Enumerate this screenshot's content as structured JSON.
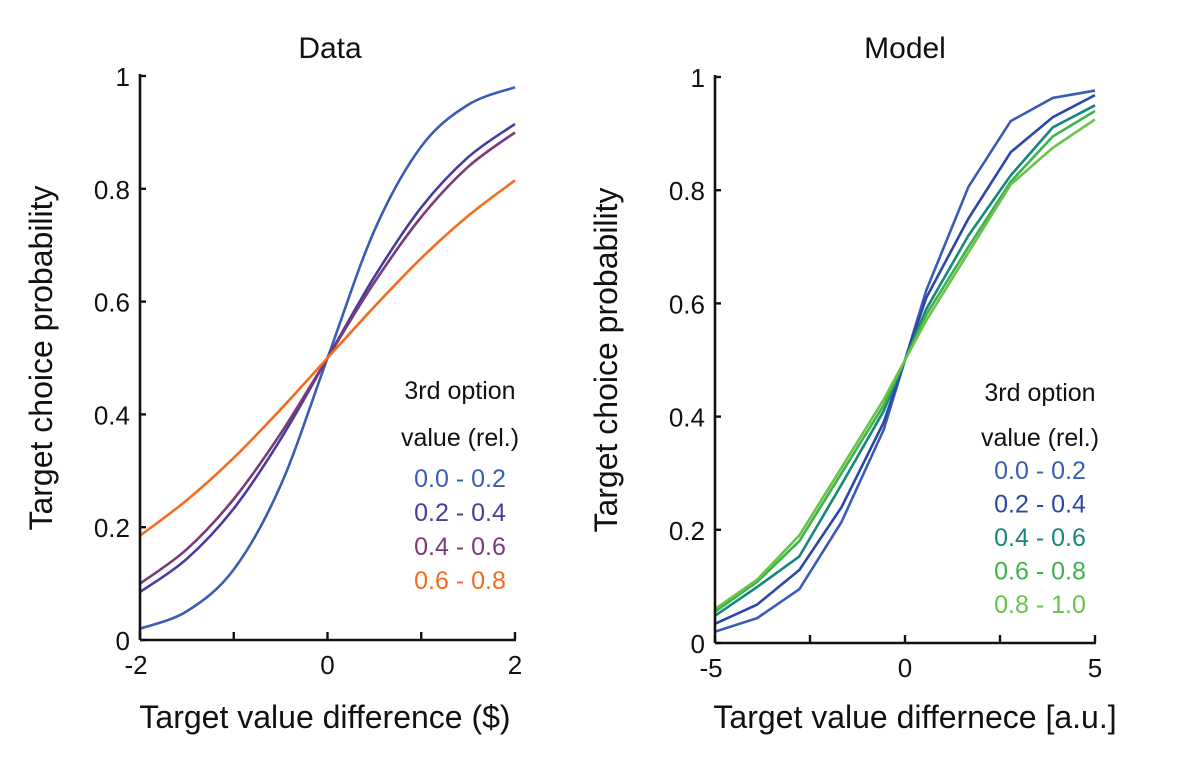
{
  "chart_data": [
    {
      "type": "line",
      "title": "Data",
      "xlabel": "Target value difference ($)",
      "ylabel": "Target choice probability",
      "xlim": [
        -2,
        2
      ],
      "ylim": [
        0,
        1
      ],
      "xticks": [
        -2,
        -1,
        0,
        1,
        2
      ],
      "xticklabels": [
        "-2",
        "",
        "0",
        "",
        "2"
      ],
      "yticks": [
        0,
        0.2,
        0.4,
        0.6,
        0.8,
        1
      ],
      "yticklabels": [
        "0",
        "0.2",
        "0.4",
        "0.6",
        "0.8",
        "1"
      ],
      "grid": false,
      "smooth": true,
      "legend": {
        "title": [
          "3rd option",
          "value (rel.)"
        ],
        "placement": "bottom-right"
      },
      "x": [
        -2,
        -1.5,
        -1,
        -0.5,
        0,
        0.5,
        1,
        1.5,
        2
      ],
      "series": [
        {
          "name": "0.0 - 0.2",
          "color": "#3b5cb4",
          "values": [
            0.02,
            0.051,
            0.125,
            0.274,
            0.5,
            0.726,
            0.875,
            0.949,
            0.98
          ]
        },
        {
          "name": "0.2 - 0.4",
          "color": "#4a3c9c",
          "values": [
            0.085,
            0.144,
            0.233,
            0.356,
            0.5,
            0.644,
            0.767,
            0.856,
            0.915
          ]
        },
        {
          "name": "0.4 - 0.6",
          "color": "#7b3a78",
          "values": [
            0.1,
            0.161,
            0.25,
            0.366,
            0.5,
            0.634,
            0.75,
            0.839,
            0.9
          ]
        },
        {
          "name": "0.6 - 0.8",
          "color": "#f36c21",
          "values": [
            0.185,
            0.248,
            0.323,
            0.409,
            0.5,
            0.591,
            0.677,
            0.752,
            0.815
          ]
        }
      ]
    },
    {
      "type": "line",
      "title": "Model",
      "xlabel": "Target value differnece [a.u.]",
      "ylabel": "Target choice probability",
      "xlim": [
        -5,
        5
      ],
      "ylim": [
        0,
        1
      ],
      "xticks": [
        -5,
        -2.5,
        0,
        2.5,
        5
      ],
      "xticklabels": [
        "-5",
        "",
        "0",
        "",
        "5"
      ],
      "yticks": [
        0,
        0.2,
        0.4,
        0.6,
        0.8,
        1
      ],
      "yticklabels": [
        "0",
        "0.2",
        "0.4",
        "0.6",
        "0.8",
        "1"
      ],
      "grid": false,
      "smooth": false,
      "legend": {
        "title": [
          "3rd option",
          "value (rel.)"
        ],
        "placement": "bottom-right"
      },
      "x": [
        -5,
        -3.89,
        -2.78,
        -1.67,
        -0.56,
        0.56,
        1.67,
        2.78,
        3.89,
        5
      ],
      "series": [
        {
          "name": "0.0 - 0.2",
          "color": "#3b5cb4",
          "values": [
            0.02,
            0.044,
            0.095,
            0.214,
            0.377,
            0.623,
            0.806,
            0.922,
            0.963,
            0.976
          ]
        },
        {
          "name": "0.2 - 0.4",
          "color": "#2d47a8",
          "values": [
            0.034,
            0.068,
            0.129,
            0.24,
            0.39,
            0.61,
            0.75,
            0.867,
            0.929,
            0.968
          ]
        },
        {
          "name": "0.4 - 0.6",
          "color": "#16877a",
          "values": [
            0.048,
            0.099,
            0.153,
            0.28,
            0.41,
            0.59,
            0.72,
            0.826,
            0.911,
            0.95
          ]
        },
        {
          "name": "0.6 - 0.8",
          "color": "#3db34e",
          "values": [
            0.055,
            0.108,
            0.18,
            0.3,
            0.42,
            0.58,
            0.7,
            0.815,
            0.895,
            0.94
          ]
        },
        {
          "name": "0.8 - 1.0",
          "color": "#6cc24a",
          "values": [
            0.06,
            0.112,
            0.19,
            0.31,
            0.43,
            0.57,
            0.69,
            0.81,
            0.875,
            0.925
          ]
        }
      ]
    }
  ]
}
